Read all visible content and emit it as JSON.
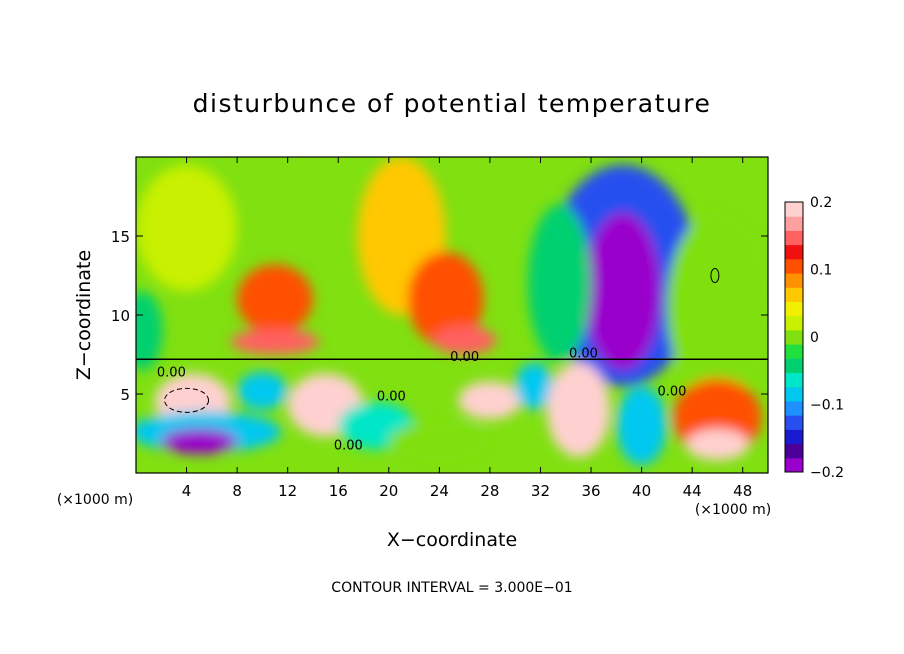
{
  "chart_data": {
    "type": "heatmap",
    "title": "disturbunce of potential temperature",
    "xlabel": "X−coordinate",
    "ylabel": "Z−coordinate",
    "x_unit": "(×1000 m)",
    "x_unit_right": "(×1000 m)",
    "footer": "CONTOUR INTERVAL = 3.000E−01",
    "xlim": [
      0,
      50
    ],
    "ylim": [
      0,
      20
    ],
    "x_ticks": [
      4,
      8,
      12,
      16,
      20,
      24,
      28,
      32,
      36,
      40,
      44,
      48
    ],
    "y_ticks": [
      5,
      10,
      15
    ],
    "colorbar": {
      "range": [
        -0.2,
        0.2
      ],
      "labels": [
        {
          "value": 0.2,
          "text": "0.2"
        },
        {
          "value": 0.1,
          "text": "0.1"
        },
        {
          "value": 0.0,
          "text": "0"
        },
        {
          "value": -0.1,
          "text": "−0.1"
        },
        {
          "value": -0.2,
          "text": "−0.2"
        }
      ],
      "colors": [
        "#9900cc",
        "#4b0099",
        "#1a1ad0",
        "#2850f0",
        "#1e90ff",
        "#00c8f0",
        "#00e6c8",
        "#00d070",
        "#20e040",
        "#80e010",
        "#c8f000",
        "#f0f000",
        "#ffc800",
        "#ff9000",
        "#ff5000",
        "#f01010",
        "#ff6060",
        "#ffa0a0",
        "#ffd0d0"
      ]
    },
    "contour_labels": [
      {
        "x": 2.8,
        "y": 6.1,
        "text": "0.00"
      },
      {
        "x": 26.0,
        "y": 7.1,
        "text": "0.00"
      },
      {
        "x": 35.4,
        "y": 7.3,
        "text": "0.00"
      },
      {
        "x": 20.2,
        "y": 4.6,
        "text": "0.00"
      },
      {
        "x": 16.8,
        "y": 1.5,
        "text": "0.00"
      },
      {
        "x": 42.4,
        "y": 4.9,
        "text": "0.00"
      }
    ],
    "fields": [
      {
        "x": 4,
        "z": 15.5,
        "value": 0.02,
        "rx": 4,
        "rz": 4
      },
      {
        "x": 11,
        "z": 11,
        "value": 0.11,
        "rx": 3,
        "rz": 2.2
      },
      {
        "x": 11,
        "z": 8.3,
        "value": 0.16,
        "rx": 3.5,
        "rz": 0.8
      },
      {
        "x": 21,
        "z": 15,
        "value": 0.06,
        "rx": 3.5,
        "rz": 5
      },
      {
        "x": 24.5,
        "z": 11,
        "value": 0.12,
        "rx": 3,
        "rz": 3
      },
      {
        "x": 26,
        "z": 8.4,
        "value": 0.16,
        "rx": 2.5,
        "rz": 0.9
      },
      {
        "x": 38.5,
        "z": 12.5,
        "value": -0.13,
        "rx": 6,
        "rz": 7
      },
      {
        "x": 38.5,
        "z": 11.5,
        "value": -0.2,
        "rx": 3,
        "rz": 5
      },
      {
        "x": 33.5,
        "z": 12,
        "value": -0.04,
        "rx": 2.5,
        "rz": 5
      },
      {
        "x": 46,
        "z": 10.5,
        "value": 0.0,
        "rx": 4,
        "rz": 6
      },
      {
        "x": 0.5,
        "z": 9,
        "value": -0.04,
        "rx": 1.6,
        "rz": 2.5
      },
      {
        "x": 4.5,
        "z": 4.5,
        "value": 0.2,
        "rx": 3,
        "rz": 1.8
      },
      {
        "x": 5.5,
        "z": 2.6,
        "value": -0.1,
        "rx": 6,
        "rz": 1.3
      },
      {
        "x": 5,
        "z": 2.0,
        "value": -0.2,
        "rx": 3,
        "rz": 0.8
      },
      {
        "x": 10,
        "z": 5.2,
        "value": -0.08,
        "rx": 2,
        "rz": 1.2
      },
      {
        "x": 15,
        "z": 4.3,
        "value": 0.2,
        "rx": 3,
        "rz": 2
      },
      {
        "x": 19,
        "z": 3,
        "value": -0.06,
        "rx": 3,
        "rz": 1.5
      },
      {
        "x": 24,
        "z": 2,
        "value": 0.0,
        "rx": 4,
        "rz": 1.2
      },
      {
        "x": 28,
        "z": 4.6,
        "value": 0.2,
        "rx": 2.5,
        "rz": 1.2
      },
      {
        "x": 31.5,
        "z": 5.5,
        "value": -0.1,
        "rx": 1.5,
        "rz": 1.5
      },
      {
        "x": 35,
        "z": 4,
        "value": 0.2,
        "rx": 2.5,
        "rz": 3
      },
      {
        "x": 40,
        "z": 3,
        "value": -0.1,
        "rx": 2,
        "rz": 2.5
      },
      {
        "x": 46,
        "z": 3.5,
        "value": 0.12,
        "rx": 3.5,
        "rz": 2.5
      },
      {
        "x": 46,
        "z": 1.8,
        "value": 0.2,
        "rx": 2.5,
        "rz": 1
      }
    ]
  }
}
